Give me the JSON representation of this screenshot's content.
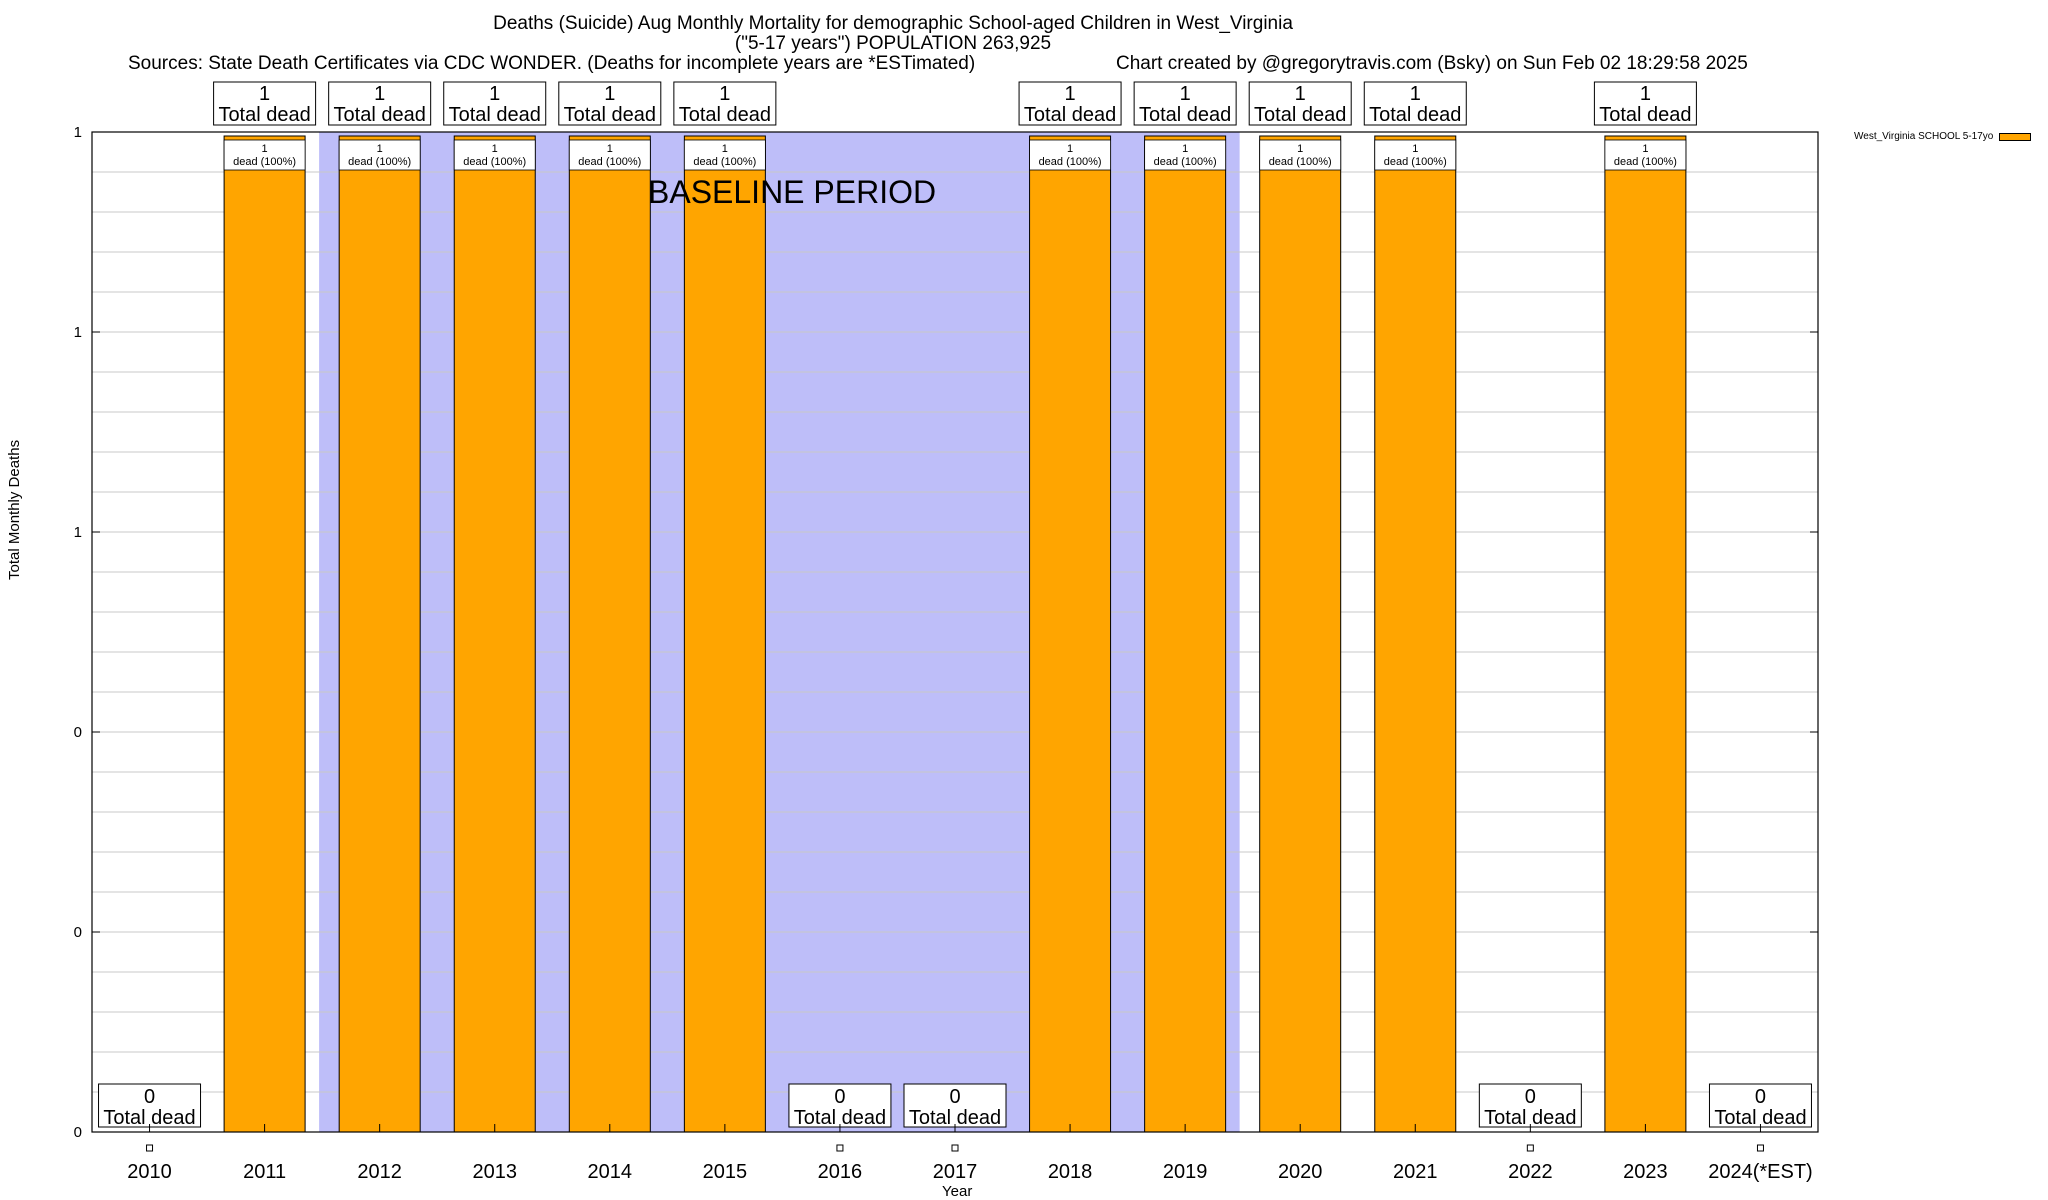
{
  "header": {
    "title_line1": "Deaths (Suicide) Aug Monthly Mortality for demographic School-aged Children in West_Virginia",
    "title_line2": "(\"5-17 years\") POPULATION 263,925",
    "sources": "Sources: State Death Certificates via CDC WONDER. (Deaths for incomplete years are *ESTimated)",
    "credit": "Chart created by @gregorytravis.com (Bsky) on Sun Feb 02 18:29:58 2025"
  },
  "chart_data": {
    "type": "bar",
    "xlabel": "Year",
    "ylabel": "Total Monthly Deaths",
    "categories": [
      "2010",
      "2011",
      "2012",
      "2013",
      "2014",
      "2015",
      "2016",
      "2017",
      "2018",
      "2019",
      "2020",
      "2021",
      "2022",
      "2023",
      "2024(*EST)"
    ],
    "series": [
      {
        "name": "West_Virginia SCHOOL 5-17yo",
        "color": "#ffa500",
        "values": [
          0,
          1,
          1,
          1,
          1,
          1,
          0,
          0,
          1,
          1,
          1,
          1,
          0,
          1,
          0
        ]
      }
    ],
    "ylim": [
      0,
      1
    ],
    "yticks": [
      0,
      0.2,
      0.4,
      0.6,
      0.8,
      1.0
    ],
    "ytick_labels": [
      "0",
      "0",
      "0",
      "1",
      "1",
      "1"
    ],
    "total_label_suffix": "Total dead",
    "bar_label_suffix": "dead (100%)",
    "baseline_label": "BASELINE PERIOD",
    "baseline_color": "#bebef9",
    "grid": true,
    "legend_position": "top-right"
  }
}
